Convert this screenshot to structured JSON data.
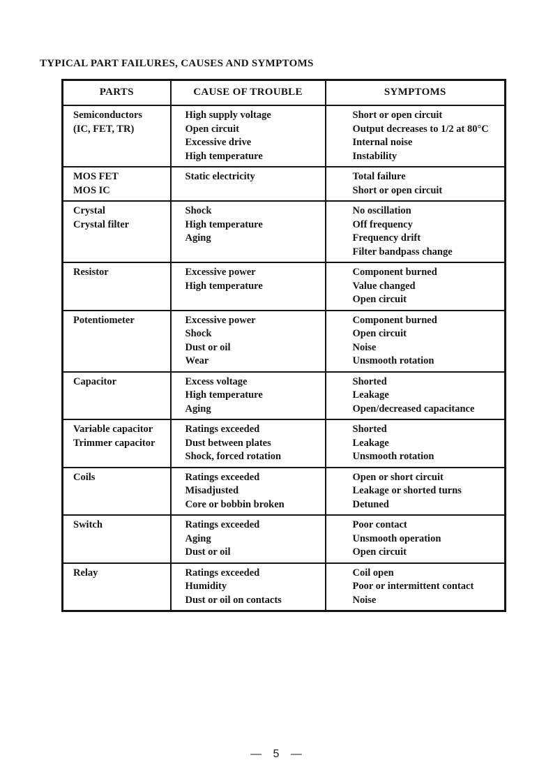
{
  "page": {
    "title": "TYPICAL PART FAILURES, CAUSES AND SYMPTOMS",
    "page_number": "— 5 —"
  },
  "table": {
    "headers": [
      "PARTS",
      "CAUSE OF TROUBLE",
      "SYMPTOMS"
    ],
    "rows": [
      {
        "parts": [
          "Semiconductors",
          "(IC, FET, TR)"
        ],
        "causes": [
          "High supply voltage",
          "Open circuit",
          "Excessive drive",
          "High temperature"
        ],
        "symptoms": [
          "Short or open circuit",
          "Output decreases to 1/2 at 80°C",
          "Internal noise",
          "Instability"
        ]
      },
      {
        "parts": [
          "MOS FET",
          "MOS IC"
        ],
        "causes": [
          "Static electricity"
        ],
        "symptoms": [
          "Total failure",
          "Short or open circuit"
        ]
      },
      {
        "parts": [
          "Crystal",
          "Crystal filter"
        ],
        "causes": [
          "Shock",
          "High temperature",
          "Aging"
        ],
        "symptoms": [
          "No oscillation",
          "Off frequency",
          "Frequency drift",
          "Filter bandpass change"
        ]
      },
      {
        "parts": [
          "Resistor"
        ],
        "causes": [
          "Excessive power",
          "High temperature"
        ],
        "symptoms": [
          "Component burned",
          "Value changed",
          "Open circuit"
        ]
      },
      {
        "parts": [
          "Potentiometer"
        ],
        "causes": [
          "Excessive power",
          "Shock",
          "Dust or oil",
          "Wear"
        ],
        "symptoms": [
          "Component burned",
          "Open circuit",
          "Noise",
          "Unsmooth rotation"
        ]
      },
      {
        "parts": [
          "Capacitor"
        ],
        "causes": [
          "Excess voltage",
          "High temperature",
          "Aging"
        ],
        "symptoms": [
          "Shorted",
          "Leakage",
          "Open/decreased capacitance"
        ]
      },
      {
        "parts": [
          "Variable capacitor",
          "Trimmer capacitor"
        ],
        "causes": [
          "Ratings exceeded",
          "Dust between plates",
          "Shock, forced rotation"
        ],
        "symptoms": [
          "Shorted",
          "Leakage",
          "Unsmooth rotation"
        ]
      },
      {
        "parts": [
          "Coils"
        ],
        "causes": [
          "Ratings exceeded",
          "Misadjusted",
          "Core or bobbin broken"
        ],
        "symptoms": [
          "Open or short circuit",
          "Leakage or shorted turns",
          "Detuned"
        ]
      },
      {
        "parts": [
          "Switch"
        ],
        "causes": [
          "Ratings exceeded",
          "Aging",
          "Dust or oil"
        ],
        "symptoms": [
          "Poor contact",
          "Unsmooth operation",
          "Open circuit"
        ]
      },
      {
        "parts": [
          "Relay"
        ],
        "causes": [
          "Ratings exceeded",
          "Humidity",
          "Dust or oil on contacts"
        ],
        "symptoms": [
          "Coil open",
          "Poor or intermittent contact",
          "Noise"
        ]
      }
    ]
  }
}
